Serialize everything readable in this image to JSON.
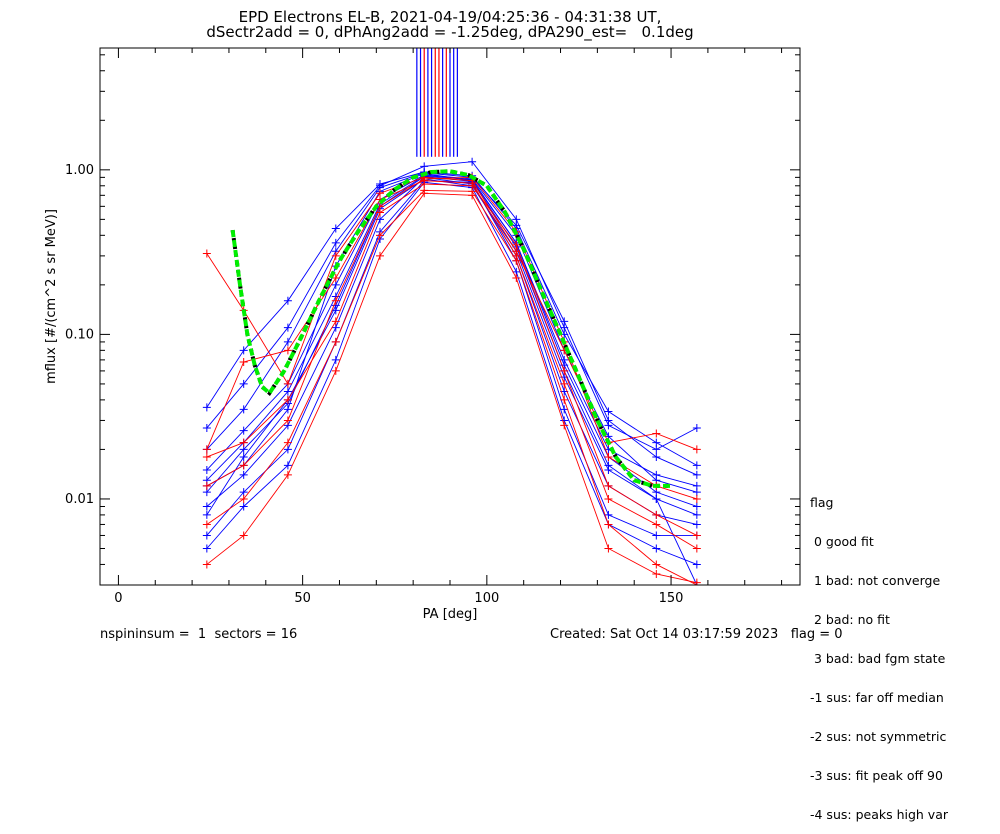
{
  "title": {
    "line1": "EPD Electrons EL-B, 2021-04-19/04:25:36 - 04:31:38 UT,",
    "line2": "dSectr2add = 0, dPhAng2add = -1.25deg, dPA290_est=   0.1deg"
  },
  "footer": {
    "left": "nspininsum =  1  sectors = 16",
    "right": "Created: Sat Oct 14 03:17:59 2023   flag = 0"
  },
  "legend": {
    "title": "flag",
    "items": [
      " 0 good fit",
      " 1 bad: not converge",
      " 2 bad: no fit",
      " 3 bad: bad fgm state",
      "-1 sus: far off median",
      "-2 sus: not symmetric",
      "-3 sus: fit peak off 90",
      "-4 sus: peaks high var"
    ]
  },
  "colors": {
    "series_blue": "#0000ff",
    "series_red": "#ff0000",
    "fit_green": "#00ee00",
    "fit_black": "#000000",
    "axis": "#000000"
  },
  "chart_data": {
    "type": "line",
    "xlabel": "PA [deg]",
    "ylabel": "mflux [#/(cm^2 s sr MeV)]",
    "xlim": [
      -5,
      185
    ],
    "ylim": [
      0.003,
      5.5
    ],
    "yscale": "log",
    "xticks": [
      0,
      50,
      100,
      150
    ],
    "yticks": [
      0.01,
      0.1,
      1.0
    ],
    "ytick_labels": [
      "0.01",
      "0.10",
      "1.00"
    ],
    "x_sectors": [
      24,
      34,
      46,
      59,
      71,
      83,
      96,
      108,
      121,
      133,
      146,
      157
    ],
    "series": [
      {
        "color": "blue",
        "values": [
          0.012,
          0.016,
          0.035,
          0.26,
          0.74,
          0.95,
          0.86,
          0.36,
          0.07,
          0.02,
          0.014,
          0.012
        ]
      },
      {
        "color": "blue",
        "values": [
          0.008,
          0.018,
          0.04,
          0.14,
          0.58,
          0.88,
          0.8,
          0.32,
          0.055,
          0.015,
          0.01,
          0.008
        ]
      },
      {
        "color": "blue",
        "values": [
          0.006,
          0.011,
          0.02,
          0.09,
          0.42,
          0.86,
          0.84,
          0.28,
          0.035,
          0.008,
          0.006,
          0.006
        ]
      },
      {
        "color": "blue",
        "values": [
          0.036,
          0.08,
          0.16,
          0.44,
          0.82,
          0.97,
          0.92,
          0.44,
          0.1,
          0.034,
          0.022,
          0.016
        ]
      },
      {
        "color": "blue",
        "values": [
          0.015,
          0.026,
          0.05,
          0.2,
          0.66,
          0.93,
          0.88,
          0.4,
          0.08,
          0.024,
          0.013,
          0.011
        ]
      },
      {
        "color": "blue",
        "values": [
          0.009,
          0.014,
          0.028,
          0.11,
          0.5,
          0.9,
          0.82,
          0.3,
          0.045,
          0.012,
          0.008,
          0.007
        ]
      },
      {
        "color": "blue",
        "values": [
          0.02,
          0.035,
          0.09,
          0.32,
          0.78,
          0.96,
          0.9,
          0.46,
          0.12,
          0.03,
          0.018,
          0.014
        ]
      },
      {
        "color": "blue",
        "values": [
          0.005,
          0.009,
          0.016,
          0.07,
          0.38,
          0.84,
          0.78,
          0.24,
          0.03,
          0.007,
          0.005,
          0.004
        ]
      },
      {
        "color": "blue",
        "values": [
          0.013,
          0.022,
          0.045,
          0.17,
          0.62,
          0.92,
          0.87,
          0.36,
          0.065,
          0.018,
          0.011,
          0.009
        ]
      },
      {
        "color": "blue",
        "values": [
          0.027,
          0.05,
          0.11,
          0.36,
          0.8,
          1.05,
          1.12,
          0.5,
          0.11,
          0.028,
          0.02,
          0.027
        ]
      },
      {
        "color": "blue",
        "values": [
          0.011,
          0.02,
          0.038,
          0.15,
          0.6,
          0.91,
          0.85,
          0.34,
          0.06,
          0.016,
          0.01,
          0.003
        ]
      },
      {
        "color": "red",
        "values": [
          0.018,
          0.022,
          0.04,
          0.12,
          0.55,
          0.82,
          0.8,
          0.35,
          0.06,
          0.012,
          0.008,
          0.006
        ]
      },
      {
        "color": "red",
        "values": [
          0.007,
          0.01,
          0.022,
          0.09,
          0.4,
          0.75,
          0.74,
          0.28,
          0.04,
          0.007,
          0.004,
          0.003
        ]
      },
      {
        "color": "red",
        "values": [
          0.31,
          0.14,
          0.05,
          0.3,
          0.72,
          0.9,
          0.86,
          0.32,
          0.08,
          0.022,
          0.025,
          0.02
        ]
      },
      {
        "color": "red",
        "values": [
          0.004,
          0.006,
          0.014,
          0.06,
          0.3,
          0.72,
          0.7,
          0.22,
          0.028,
          0.005,
          0.0035,
          0.0031
        ]
      },
      {
        "color": "red",
        "values": [
          0.012,
          0.016,
          0.03,
          0.16,
          0.6,
          0.88,
          0.9,
          0.42,
          0.09,
          0.018,
          0.012,
          0.01
        ]
      },
      {
        "color": "red",
        "values": [
          0.02,
          0.068,
          0.08,
          0.22,
          0.66,
          0.86,
          0.83,
          0.3,
          0.05,
          0.01,
          0.007,
          0.005
        ]
      }
    ],
    "fit": {
      "x": [
        31,
        33,
        35,
        37,
        39,
        41,
        45,
        50,
        55,
        60,
        65,
        70,
        75,
        80,
        85,
        90,
        95,
        100,
        105,
        110,
        115,
        120,
        125,
        130,
        135,
        140,
        145,
        150
      ],
      "y": [
        0.43,
        0.2,
        0.1,
        0.065,
        0.048,
        0.044,
        0.06,
        0.1,
        0.17,
        0.28,
        0.42,
        0.6,
        0.76,
        0.9,
        0.97,
        0.98,
        0.93,
        0.8,
        0.55,
        0.33,
        0.18,
        0.1,
        0.055,
        0.03,
        0.018,
        0.013,
        0.012,
        0.012
      ]
    },
    "top_markers": {
      "x": [
        81,
        82,
        83,
        84,
        85,
        86,
        87,
        88,
        89,
        90,
        91,
        92
      ],
      "colors": [
        "blue",
        "blue",
        "red",
        "blue",
        "blue",
        "red",
        "red",
        "blue",
        "red",
        "blue",
        "blue",
        "blue"
      ],
      "y_from": 1.2
    }
  }
}
